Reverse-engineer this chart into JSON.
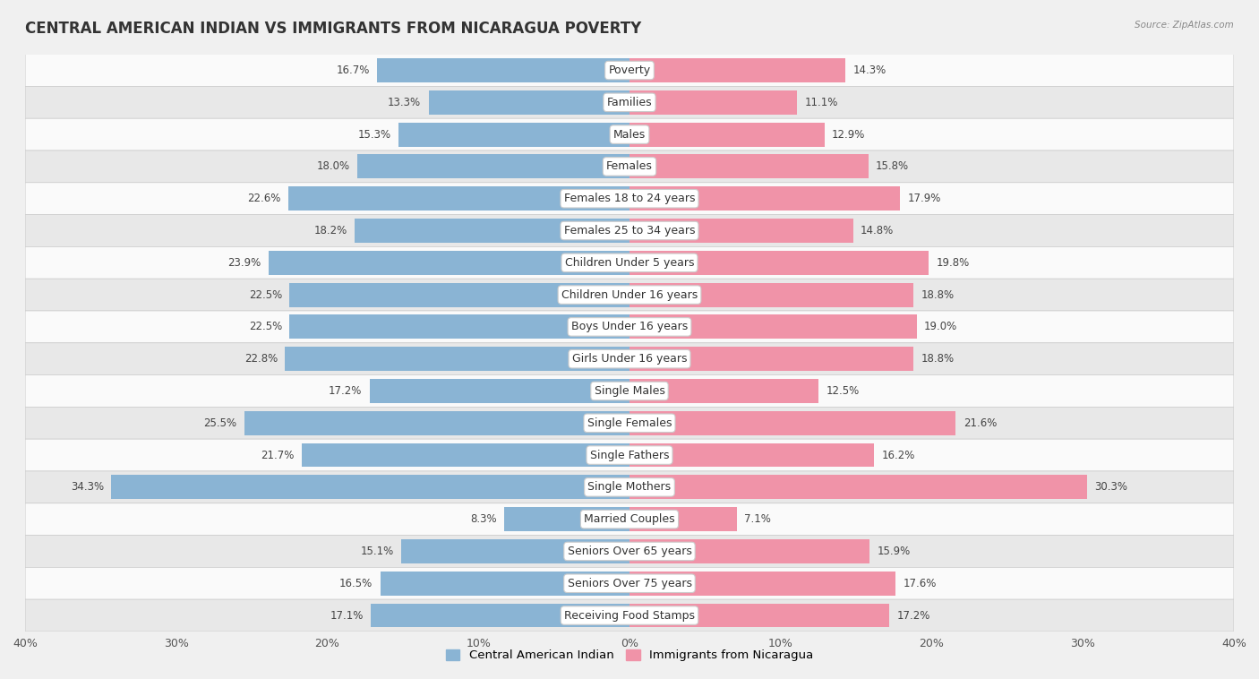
{
  "title": "CENTRAL AMERICAN INDIAN VS IMMIGRANTS FROM NICARAGUA POVERTY",
  "source": "Source: ZipAtlas.com",
  "categories": [
    "Poverty",
    "Families",
    "Males",
    "Females",
    "Females 18 to 24 years",
    "Females 25 to 34 years",
    "Children Under 5 years",
    "Children Under 16 years",
    "Boys Under 16 years",
    "Girls Under 16 years",
    "Single Males",
    "Single Females",
    "Single Fathers",
    "Single Mothers",
    "Married Couples",
    "Seniors Over 65 years",
    "Seniors Over 75 years",
    "Receiving Food Stamps"
  ],
  "left_values": [
    16.7,
    13.3,
    15.3,
    18.0,
    22.6,
    18.2,
    23.9,
    22.5,
    22.5,
    22.8,
    17.2,
    25.5,
    21.7,
    34.3,
    8.3,
    15.1,
    16.5,
    17.1
  ],
  "right_values": [
    14.3,
    11.1,
    12.9,
    15.8,
    17.9,
    14.8,
    19.8,
    18.8,
    19.0,
    18.8,
    12.5,
    21.6,
    16.2,
    30.3,
    7.1,
    15.9,
    17.6,
    17.2
  ],
  "left_color": "#8ab4d4",
  "right_color": "#f093a8",
  "left_label": "Central American Indian",
  "right_label": "Immigrants from Nicaragua",
  "xlim": 40.0,
  "bar_height": 0.75,
  "bg_color": "#f0f0f0",
  "row_colors": [
    "#fafafa",
    "#e8e8e8"
  ],
  "title_fontsize": 12,
  "label_fontsize": 9,
  "value_fontsize": 8.5,
  "axis_fontsize": 9
}
